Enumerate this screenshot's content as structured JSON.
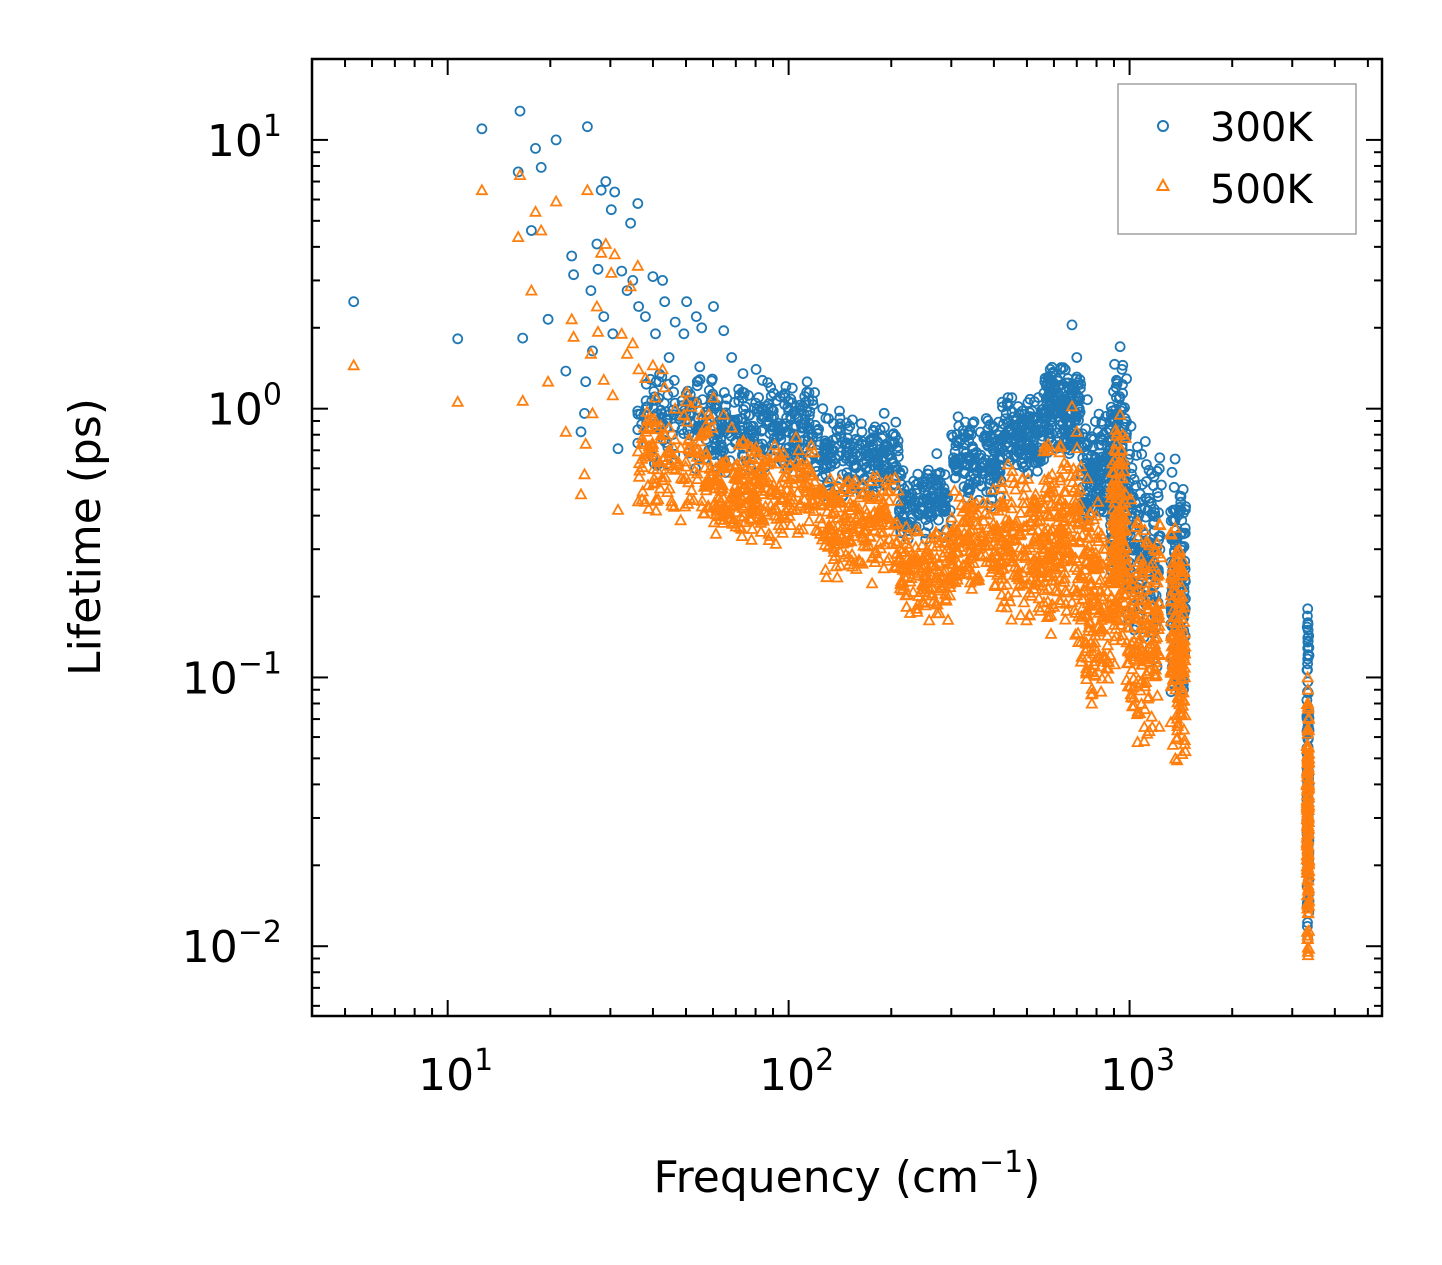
{
  "chart_data": {
    "type": "scatter",
    "title": "",
    "xlabel": "Frequency (cm",
    "xlabel_sup": "−1",
    "xlabel_end": ")",
    "ylabel": "Lifetime (ps)",
    "xscale": "log",
    "yscale": "log",
    "xlim": [
      4,
      5500
    ],
    "ylim": [
      0.0055,
      20
    ],
    "x_ticks": [
      {
        "value": 10,
        "base": "10",
        "exp": "1"
      },
      {
        "value": 100,
        "base": "10",
        "exp": "2"
      },
      {
        "value": 1000,
        "base": "10",
        "exp": "3"
      }
    ],
    "y_ticks": [
      {
        "value": 10,
        "base": "10",
        "exp": "1"
      },
      {
        "value": 1,
        "base": "10",
        "exp": "0"
      },
      {
        "value": 0.1,
        "base": "10",
        "exp": "−1"
      },
      {
        "value": 0.01,
        "base": "10",
        "exp": "−2"
      }
    ],
    "legend_position": "top-right",
    "series": [
      {
        "name": "300K",
        "marker": "circle",
        "color": "#1f77b4",
        "points": [
          [
            5.3,
            2.5
          ],
          [
            10.7,
            1.82
          ],
          [
            12.6,
            11.0
          ],
          [
            16.1,
            7.6
          ],
          [
            16.3,
            12.8
          ],
          [
            16.6,
            1.83
          ],
          [
            17.6,
            4.6
          ],
          [
            18.1,
            9.3
          ],
          [
            18.8,
            7.9
          ],
          [
            19.7,
            2.15
          ],
          [
            20.8,
            10.0
          ],
          [
            22.2,
            1.38
          ],
          [
            23.1,
            3.7
          ],
          [
            23.4,
            3.15
          ],
          [
            24.6,
            0.82
          ],
          [
            25.2,
            0.96
          ],
          [
            25.4,
            1.26
          ],
          [
            25.7,
            11.2
          ],
          [
            26.3,
            2.75
          ],
          [
            26.6,
            1.64
          ],
          [
            27.4,
            4.1
          ],
          [
            27.6,
            3.3
          ],
          [
            28.2,
            6.5
          ],
          [
            28.7,
            2.2
          ],
          [
            29.1,
            7.0
          ],
          [
            30.2,
            5.5
          ],
          [
            30.5,
            1.9
          ],
          [
            30.9,
            6.4
          ],
          [
            31.6,
            0.71
          ],
          [
            32.4,
            3.25
          ],
          [
            33.6,
            2.75
          ],
          [
            34.4,
            4.9
          ],
          [
            34.9,
            3.0
          ],
          [
            36.1,
            5.8
          ],
          [
            36.3,
            2.4
          ],
          [
            38.0,
            2.2
          ],
          [
            40.0,
            3.1
          ],
          [
            40.7,
            1.9
          ],
          [
            42.7,
            3.0
          ],
          [
            43.3,
            2.5
          ],
          [
            44.6,
            1.55
          ],
          [
            46.5,
            2.1
          ],
          [
            49.3,
            1.9
          ],
          [
            50.2,
            2.5
          ],
          [
            53.6,
            2.2
          ],
          [
            55.6,
            2.0
          ],
          [
            60.2,
            2.4
          ],
          [
            64.5,
            1.95
          ],
          [
            68.1,
            1.55
          ],
          [
            73.5,
            1.35
          ],
          [
            80.3,
            1.4
          ],
          [
            86.8,
            1.25
          ],
          [
            97.5,
            1.1
          ],
          [
            110.0,
            1.02
          ],
          [
            126.0,
            1.0
          ],
          [
            141.0,
            0.98
          ],
          [
            164.0,
            0.82
          ],
          [
            186.0,
            0.68
          ],
          [
            212.0,
            0.58
          ],
          [
            238.0,
            0.5
          ],
          [
            262.0,
            0.55
          ],
          [
            272.0,
            0.68
          ],
          [
            305.0,
            0.62
          ],
          [
            345.0,
            0.72
          ],
          [
            398.0,
            0.86
          ],
          [
            440.0,
            1.1
          ],
          [
            485.0,
            0.98
          ],
          [
            530.0,
            0.92
          ],
          [
            580.0,
            1.3
          ],
          [
            628.0,
            1.4
          ],
          [
            678.0,
            2.05
          ],
          [
            700.0,
            1.55
          ],
          [
            752.0,
            1.08
          ],
          [
            808.0,
            0.82
          ],
          [
            890.0,
            0.98
          ],
          [
            938.0,
            1.7
          ],
          [
            955.0,
            1.45
          ],
          [
            1010.0,
            0.86
          ],
          [
            1055.0,
            0.72
          ],
          [
            1120.0,
            0.62
          ],
          [
            1180.0,
            0.56
          ],
          [
            1240.0,
            0.52
          ],
          [
            1360.0,
            0.65
          ],
          [
            1400.0,
            0.42
          ],
          [
            3330.0,
            0.18
          ],
          [
            3335.0,
            0.16
          ],
          [
            3340.0,
            0.15
          ],
          [
            3350.0,
            0.12
          ]
        ]
      },
      {
        "name": "500K",
        "marker": "triangle",
        "color": "#ff7f0e",
        "points": [
          [
            5.3,
            1.45
          ],
          [
            10.7,
            1.06
          ],
          [
            12.6,
            6.5
          ],
          [
            16.1,
            4.35
          ],
          [
            16.3,
            7.4
          ],
          [
            16.6,
            1.07
          ],
          [
            17.6,
            2.75
          ],
          [
            18.1,
            5.4
          ],
          [
            18.8,
            4.6
          ],
          [
            19.7,
            1.26
          ],
          [
            20.8,
            5.9
          ],
          [
            22.2,
            0.82
          ],
          [
            23.1,
            2.15
          ],
          [
            23.4,
            1.85
          ],
          [
            24.6,
            0.48
          ],
          [
            25.2,
            0.57
          ],
          [
            25.4,
            0.74
          ],
          [
            25.7,
            6.5
          ],
          [
            26.3,
            1.6
          ],
          [
            26.6,
            0.96
          ],
          [
            27.4,
            2.4
          ],
          [
            27.6,
            1.93
          ],
          [
            28.2,
            3.8
          ],
          [
            28.7,
            1.28
          ],
          [
            29.1,
            4.1
          ],
          [
            30.2,
            3.2
          ],
          [
            30.5,
            1.12
          ],
          [
            30.9,
            3.75
          ],
          [
            31.6,
            0.42
          ],
          [
            32.4,
            1.9
          ],
          [
            33.6,
            1.6
          ],
          [
            34.4,
            2.85
          ],
          [
            34.9,
            1.75
          ],
          [
            36.1,
            3.4
          ],
          [
            36.3,
            1.4
          ],
          [
            38.0,
            1.3
          ],
          [
            40.0,
            1.45
          ],
          [
            40.7,
            1.1
          ],
          [
            42.7,
            1.4
          ],
          [
            43.3,
            1.2
          ],
          [
            44.6,
            0.85
          ],
          [
            46.5,
            1.0
          ],
          [
            49.3,
            0.95
          ],
          [
            50.2,
            1.15
          ],
          [
            53.6,
            1.05
          ],
          [
            55.6,
            0.95
          ],
          [
            60.2,
            1.1
          ],
          [
            64.5,
            0.95
          ],
          [
            68.1,
            0.85
          ],
          [
            73.5,
            0.75
          ],
          [
            80.3,
            0.72
          ],
          [
            86.8,
            0.62
          ],
          [
            97.5,
            0.6
          ],
          [
            110.0,
            0.55
          ],
          [
            126.0,
            0.5
          ],
          [
            141.0,
            0.45
          ],
          [
            164.0,
            0.38
          ],
          [
            186.0,
            0.32
          ],
          [
            212.0,
            0.28
          ],
          [
            238.0,
            0.24
          ],
          [
            262.0,
            0.26
          ],
          [
            272.0,
            0.34
          ],
          [
            305.0,
            0.36
          ],
          [
            345.0,
            0.42
          ],
          [
            398.0,
            0.5
          ],
          [
            440.0,
            0.62
          ],
          [
            485.0,
            0.55
          ],
          [
            530.0,
            0.48
          ],
          [
            580.0,
            0.7
          ],
          [
            628.0,
            0.72
          ],
          [
            678.0,
            1.02
          ],
          [
            700.0,
            0.82
          ],
          [
            752.0,
            0.55
          ],
          [
            808.0,
            0.45
          ],
          [
            890.0,
            0.52
          ],
          [
            938.0,
            0.95
          ],
          [
            955.0,
            0.8
          ],
          [
            1010.0,
            0.46
          ],
          [
            1055.0,
            0.38
          ],
          [
            1120.0,
            0.32
          ],
          [
            1180.0,
            0.3
          ],
          [
            1240.0,
            0.28
          ],
          [
            1360.0,
            0.36
          ],
          [
            1400.0,
            0.26
          ],
          [
            3330.0,
            0.1
          ],
          [
            3335.0,
            0.09
          ],
          [
            3340.0,
            0.08
          ],
          [
            3350.0,
            0.07
          ]
        ]
      }
    ],
    "dense_clouds": [
      {
        "series": "300K",
        "description": "dense scatter band",
        "ranges": [
          {
            "x": [
              36,
              60
            ],
            "y_low": 0.55,
            "y_high": 1.6,
            "count": 120
          },
          {
            "x": [
              60,
              120
            ],
            "y_low": 0.55,
            "y_high": 1.3,
            "count": 260
          },
          {
            "x": [
              120,
              210
            ],
            "y_low": 0.45,
            "y_high": 1.0,
            "count": 200
          },
          {
            "x": [
              210,
              300
            ],
            "y_low": 0.32,
            "y_high": 0.62,
            "count": 140
          },
          {
            "x": [
              300,
              420
            ],
            "y_low": 0.42,
            "y_high": 0.95,
            "count": 150
          },
          {
            "x": [
              420,
              560
            ],
            "y_low": 0.55,
            "y_high": 1.15,
            "count": 160
          },
          {
            "x": [
              560,
              720
            ],
            "y_low": 0.65,
            "y_high": 1.5,
            "count": 180
          },
          {
            "x": [
              720,
              880
            ],
            "y_low": 0.35,
            "y_high": 1.0,
            "count": 140
          },
          {
            "x": [
              880,
              980
            ],
            "y_low": 0.2,
            "y_high": 1.7,
            "count": 160
          },
          {
            "x": [
              980,
              1230
            ],
            "y_low": 0.1,
            "y_high": 0.85,
            "count": 160
          },
          {
            "x": [
              1320,
              1460
            ],
            "y_low": 0.07,
            "y_high": 0.65,
            "count": 150
          },
          {
            "x": [
              3310,
              3360
            ],
            "y_low": 0.009,
            "y_high": 0.18,
            "count": 140
          }
        ]
      },
      {
        "series": "500K",
        "description": "dense scatter band",
        "ranges": [
          {
            "x": [
              36,
              60
            ],
            "y_low": 0.38,
            "y_high": 1.1,
            "count": 140
          },
          {
            "x": [
              60,
              120
            ],
            "y_low": 0.3,
            "y_high": 0.8,
            "count": 280
          },
          {
            "x": [
              120,
              210
            ],
            "y_low": 0.22,
            "y_high": 0.6,
            "count": 220
          },
          {
            "x": [
              210,
              300
            ],
            "y_low": 0.16,
            "y_high": 0.38,
            "count": 150
          },
          {
            "x": [
              300,
              420
            ],
            "y_low": 0.2,
            "y_high": 0.5,
            "count": 150
          },
          {
            "x": [
              420,
              560
            ],
            "y_low": 0.15,
            "y_high": 0.62,
            "count": 170
          },
          {
            "x": [
              560,
              720
            ],
            "y_low": 0.12,
            "y_high": 0.85,
            "count": 190
          },
          {
            "x": [
              720,
              880
            ],
            "y_low": 0.07,
            "y_high": 0.5,
            "count": 150
          },
          {
            "x": [
              880,
              980
            ],
            "y_low": 0.1,
            "y_high": 0.95,
            "count": 170
          },
          {
            "x": [
              980,
              1230
            ],
            "y_low": 0.05,
            "y_high": 0.45,
            "count": 170
          },
          {
            "x": [
              1320,
              1460
            ],
            "y_low": 0.046,
            "y_high": 0.4,
            "count": 160
          },
          {
            "x": [
              3310,
              3360
            ],
            "y_low": 0.0085,
            "y_high": 0.1,
            "count": 150
          }
        ]
      }
    ]
  }
}
